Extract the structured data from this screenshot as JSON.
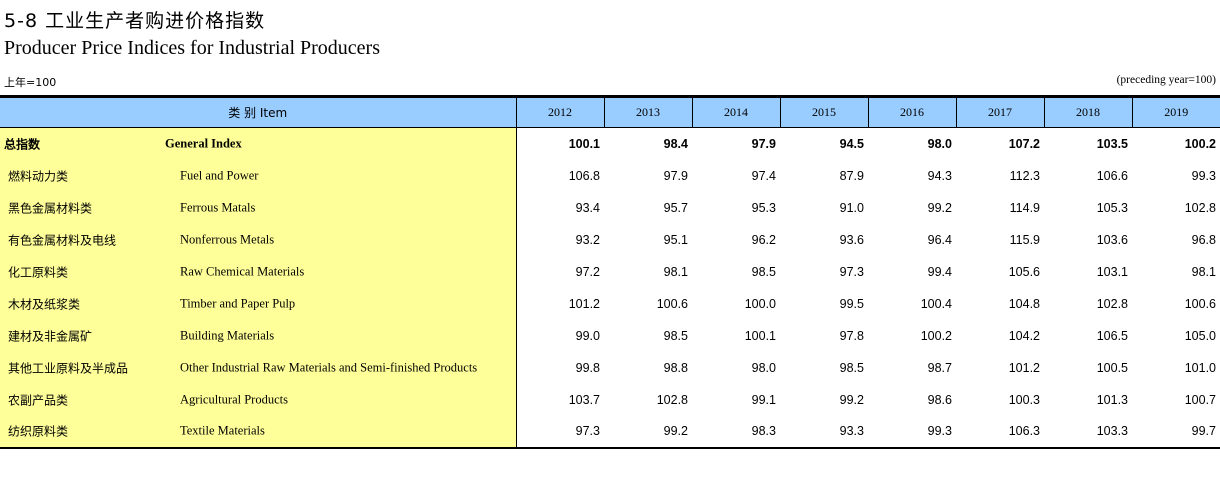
{
  "header": {
    "title_cn": "5-8  工业生产者购进价格指数",
    "title_en": "Producer Price Indices for Industrial Producers",
    "unit_cn": "上年=100",
    "unit_en": "(preceding year=100)"
  },
  "table": {
    "item_header": "类    别 Item",
    "years": [
      "2012",
      "2013",
      "2014",
      "2015",
      "2016",
      "2017",
      "2018",
      "2019"
    ],
    "rows": [
      {
        "cn": "总指数",
        "en": "General Index",
        "values": [
          "100.1",
          "98.4",
          "97.9",
          "94.5",
          "98.0",
          "107.2",
          "103.5",
          "100.2"
        ]
      },
      {
        "cn": "燃料动力类",
        "en": "Fuel and Power",
        "values": [
          "106.8",
          "97.9",
          "97.4",
          "87.9",
          "94.3",
          "112.3",
          "106.6",
          "99.3"
        ]
      },
      {
        "cn": "黑色金属材料类",
        "en": "Ferrous Matals",
        "values": [
          "93.4",
          "95.7",
          "95.3",
          "91.0",
          "99.2",
          "114.9",
          "105.3",
          "102.8"
        ]
      },
      {
        "cn": "有色金属材料及电线",
        "en": "Nonferrous Metals",
        "values": [
          "93.2",
          "95.1",
          "96.2",
          "93.6",
          "96.4",
          "115.9",
          "103.6",
          "96.8"
        ]
      },
      {
        "cn": "化工原料类",
        "en": "Raw Chemical Materials",
        "values": [
          "97.2",
          "98.1",
          "98.5",
          "97.3",
          "99.4",
          "105.6",
          "103.1",
          "98.1"
        ]
      },
      {
        "cn": "木材及纸浆类",
        "en": "Timber and Paper Pulp",
        "values": [
          "101.2",
          "100.6",
          "100.0",
          "99.5",
          "100.4",
          "104.8",
          "102.8",
          "100.6"
        ]
      },
      {
        "cn": "建材及非金属矿",
        "en": "Building Materials",
        "values": [
          "99.0",
          "98.5",
          "100.1",
          "97.8",
          "100.2",
          "104.2",
          "106.5",
          "105.0"
        ]
      },
      {
        "cn": "其他工业原料及半成品",
        "en": "Other Industrial Raw Materials and Semi-finished Products",
        "values": [
          "99.8",
          "98.8",
          "98.0",
          "98.5",
          "98.7",
          "101.2",
          "100.5",
          "101.0"
        ]
      },
      {
        "cn": "农副产品类",
        "en": "Agricultural Products",
        "values": [
          "103.7",
          "102.8",
          "99.1",
          "99.2",
          "98.6",
          "100.3",
          "101.3",
          "100.7"
        ]
      },
      {
        "cn": "纺织原料类",
        "en": "Textile Materials",
        "values": [
          "97.3",
          "99.2",
          "98.3",
          "93.3",
          "99.3",
          "106.3",
          "103.3",
          "99.7"
        ]
      }
    ]
  },
  "colors": {
    "header_bg": "#99ccff",
    "item_bg": "#ffff99"
  }
}
